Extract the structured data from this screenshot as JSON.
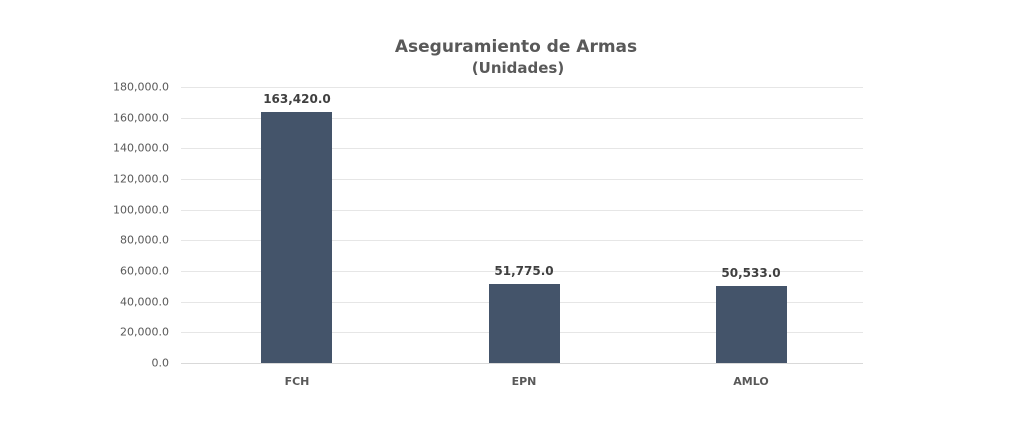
{
  "chart_data": {
    "type": "bar",
    "title": "Aseguramiento de Armas",
    "subtitle": "(Unidades)",
    "categories": [
      "FCH",
      "EPN",
      "AMLO"
    ],
    "values": [
      163420.0,
      51775.0,
      50533.0
    ],
    "data_labels": [
      "163,420.0",
      "51,775.0",
      "50,533.0"
    ],
    "xlabel": "",
    "ylabel": "",
    "ylim": [
      0,
      180000
    ],
    "yticks": [
      0,
      20000,
      40000,
      60000,
      80000,
      100000,
      120000,
      140000,
      160000,
      180000
    ],
    "ytick_labels": [
      "0.0",
      "20,000.0",
      "40,000.0",
      "60,000.0",
      "80,000.0",
      "100,000.0",
      "120,000.0",
      "140,000.0",
      "160,000.0",
      "180,000.0"
    ],
    "grid": true,
    "legend": null,
    "bar_color": "#44546A"
  }
}
